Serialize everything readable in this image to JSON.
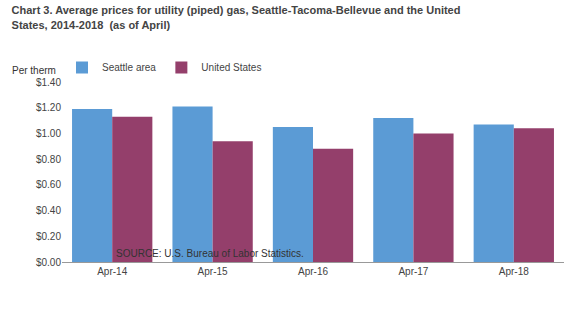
{
  "chart_data": {
    "type": "bar",
    "title": "Chart 3. Average prices for utility (piped) gas, Seattle-Tacoma-Bellevue and the United\nStates, 2014-2018  (as of April)",
    "ylabel": "Per therm",
    "annotations": [
      "SOURCE: U.S. Bureau of Labor Statistics."
    ],
    "categories": [
      "Apr-14",
      "Apr-15",
      "Apr-16",
      "Apr-17",
      "Apr-18"
    ],
    "series": [
      {
        "name": "Seattle area",
        "color": "#5B9BD5",
        "values": [
          1.19,
          1.21,
          1.05,
          1.12,
          1.07
        ]
      },
      {
        "name": "United States",
        "color": "#943F6B",
        "values": [
          1.13,
          0.94,
          0.88,
          1.0,
          1.04
        ]
      }
    ],
    "ylim": [
      0,
      1.4
    ],
    "yticks": [
      {
        "value": 0.0,
        "label": "$0.00"
      },
      {
        "value": 0.2,
        "label": "$0.20"
      },
      {
        "value": 0.4,
        "label": "$0.40"
      },
      {
        "value": 0.6,
        "label": "$0.60"
      },
      {
        "value": 0.8,
        "label": "$0.80"
      },
      {
        "value": 1.0,
        "label": "$1.00"
      },
      {
        "value": 1.2,
        "label": "$1.20"
      },
      {
        "value": 1.4,
        "label": "$1.40"
      }
    ],
    "grid": false,
    "legend": "upper left"
  }
}
